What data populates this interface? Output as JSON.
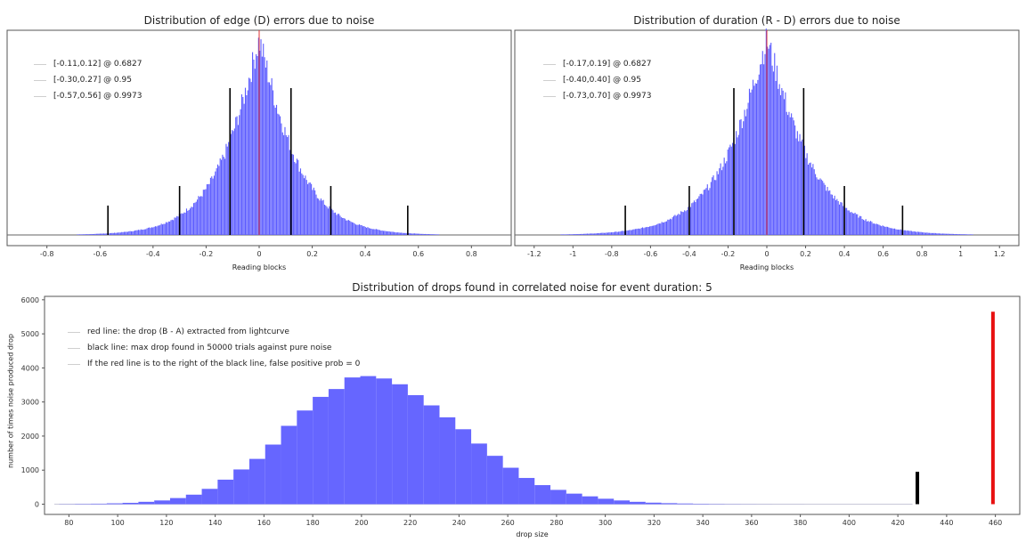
{
  "chart_data": [
    {
      "type": "bar",
      "title": "Distribution of edge (D) errors due to noise",
      "xlabel": "Reading blocks",
      "ylabel": "",
      "xlim": [
        -0.95,
        0.95
      ],
      "xticks": [
        -0.8,
        -0.6,
        -0.4,
        -0.2,
        0,
        0.2,
        0.4,
        0.6,
        0.8
      ],
      "xtick_labels": [
        "-0.8",
        "-0.6",
        "-0.4",
        "-0.2",
        "0",
        "0.2",
        "0.4",
        "0.6",
        "0.8"
      ],
      "distribution": {
        "shape": "laplace-like",
        "center": 0,
        "scale": 0.11
      },
      "center_line": {
        "x": 0,
        "color": "#e03030"
      },
      "interval_lines": [
        {
          "x": -0.11,
          "level": 0.6827
        },
        {
          "x": 0.12,
          "level": 0.6827
        },
        {
          "x": -0.3,
          "level": 0.95
        },
        {
          "x": 0.27,
          "level": 0.95
        },
        {
          "x": -0.57,
          "level": 0.9973
        },
        {
          "x": 0.56,
          "level": 0.9973
        }
      ],
      "legend": [
        "[-0.11,0.12] @ 0.6827",
        "[-0.30,0.27] @ 0.95",
        "[-0.57,0.56] @ 0.9973"
      ],
      "legend_placement": "top-left",
      "bar_color": "#5b5bff",
      "grid": false
    },
    {
      "type": "bar",
      "title": "Distribution of duration (R - D) errors due to noise",
      "xlabel": "Reading blocks",
      "ylabel": "",
      "xlim": [
        -1.3,
        1.3
      ],
      "xticks": [
        -1.2,
        -1,
        -0.8,
        -0.6,
        -0.4,
        -0.2,
        0,
        0.2,
        0.4,
        0.6,
        0.8,
        1,
        1.2
      ],
      "xtick_labels": [
        "-1.2",
        "-1",
        "-0.8",
        "-0.6",
        "-0.4",
        "-0.2",
        "0",
        "0.2",
        "0.4",
        "0.6",
        "0.8",
        "1",
        "1.2"
      ],
      "distribution": {
        "shape": "laplace-like",
        "center": 0,
        "scale": 0.17
      },
      "center_line": {
        "x": 0,
        "color": "#e03030"
      },
      "interval_lines": [
        {
          "x": -0.17,
          "level": 0.6827
        },
        {
          "x": 0.19,
          "level": 0.6827
        },
        {
          "x": -0.4,
          "level": 0.95
        },
        {
          "x": 0.4,
          "level": 0.95
        },
        {
          "x": -0.73,
          "level": 0.9973
        },
        {
          "x": 0.7,
          "level": 0.9973
        }
      ],
      "legend": [
        "[-0.17,0.19] @ 0.6827",
        "[-0.40,0.40] @ 0.95",
        "[-0.73,0.70] @ 0.9973"
      ],
      "legend_placement": "top-left",
      "bar_color": "#5b5bff",
      "grid": false
    },
    {
      "type": "bar",
      "title": "Distribution of drops found in correlated noise for event duration: 5",
      "xlabel": "drop size",
      "ylabel": "number of times noise produced drop",
      "xlim": [
        70,
        470
      ],
      "ylim": [
        -300,
        6100
      ],
      "xticks": [
        80,
        100,
        120,
        140,
        160,
        180,
        200,
        220,
        240,
        260,
        280,
        300,
        320,
        340,
        360,
        380,
        400,
        420,
        440,
        460
      ],
      "xtick_labels": [
        "80",
        "100",
        "120",
        "140",
        "160",
        "180",
        "200",
        "220",
        "240",
        "260",
        "280",
        "300",
        "320",
        "340",
        "360",
        "380",
        "400",
        "420",
        "440",
        "460"
      ],
      "yticks": [
        0,
        1000,
        2000,
        3000,
        4000,
        5000,
        6000
      ],
      "ytick_labels": [
        "0",
        "1000",
        "2000",
        "3000",
        "4000",
        "5000",
        "6000"
      ],
      "bin_width": 6.5,
      "bins_start": 76,
      "values": [
        5,
        10,
        15,
        25,
        40,
        70,
        110,
        180,
        280,
        450,
        720,
        1020,
        1330,
        1750,
        2300,
        2750,
        3150,
        3380,
        3720,
        3760,
        3690,
        3520,
        3200,
        2900,
        2550,
        2200,
        1780,
        1420,
        1070,
        770,
        560,
        420,
        310,
        230,
        160,
        110,
        70,
        45,
        30,
        20,
        12,
        8,
        5,
        3,
        2,
        1,
        1,
        0,
        0,
        0,
        0,
        0,
        0
      ],
      "black_line": {
        "x": 428,
        "y": 950,
        "color": "#000000"
      },
      "red_line": {
        "x": 459,
        "y": 5650,
        "color": "#e81010"
      },
      "legend": [
        "red line: the drop (B - A) extracted from lightcurve",
        "black line: max drop found in 50000 trials against pure noise",
        "If the red line is to the right of the black line, false positive prob = 0"
      ],
      "legend_placement": "top-left",
      "bar_color": "#6666ff",
      "grid": false
    }
  ]
}
